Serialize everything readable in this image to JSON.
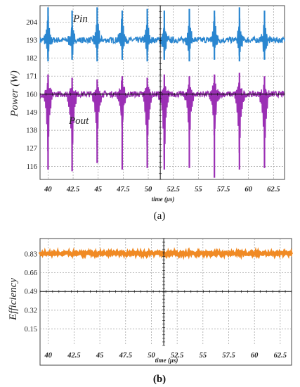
{
  "chart_data": [
    {
      "type": "line",
      "panel_label": "(a)",
      "ylabel": "Power (W)",
      "xlabel": "time (μs)",
      "xlim": [
        39.2,
        63.6
      ],
      "ylim": [
        108,
        214
      ],
      "x_ticks": [
        "40",
        "42.5",
        "45",
        "47.5",
        "50",
        "52.5",
        "55",
        "57.5",
        "60",
        "62.5"
      ],
      "x_tick_values": [
        40,
        42.5,
        45,
        47.5,
        50,
        52.5,
        55,
        57.5,
        60,
        62.5
      ],
      "y_ticks": [
        "204",
        "193",
        "182",
        "171",
        "160",
        "149",
        "138",
        "127",
        "116"
      ],
      "y_tick_values": [
        204,
        193,
        182,
        171,
        160,
        149,
        138,
        127,
        116
      ],
      "grid": true,
      "cursor_x": 51.2,
      "cursor_y": 160,
      "series": [
        {
          "name": "Pin",
          "color": "#2a86d0",
          "baseline": 193,
          "spikes": [
            {
              "t": 40.0,
              "max": 213,
              "min": 180
            },
            {
              "t": 42.4,
              "max": 211,
              "min": 181
            },
            {
              "t": 44.9,
              "max": 213,
              "min": 180
            },
            {
              "t": 47.4,
              "max": 211,
              "min": 181
            },
            {
              "t": 49.9,
              "max": 212,
              "min": 180
            },
            {
              "t": 51.6,
              "max": 211,
              "min": 181
            },
            {
              "t": 54.1,
              "max": 212,
              "min": 180
            },
            {
              "t": 56.6,
              "max": 211,
              "min": 181
            },
            {
              "t": 59.1,
              "max": 213,
              "min": 180
            },
            {
              "t": 61.6,
              "max": 211,
              "min": 181
            }
          ]
        },
        {
          "name": "Pout",
          "color": "#9b2fb4",
          "baseline": 160,
          "spikes": [
            {
              "t": 40.0,
              "max": 172,
              "min": 114
            },
            {
              "t": 42.4,
              "max": 170,
              "min": 113
            },
            {
              "t": 44.9,
              "max": 169,
              "min": 118
            },
            {
              "t": 47.4,
              "max": 171,
              "min": 114
            },
            {
              "t": 49.9,
              "max": 170,
              "min": 115
            },
            {
              "t": 51.6,
              "max": 172,
              "min": 114
            },
            {
              "t": 54.1,
              "max": 171,
              "min": 115
            },
            {
              "t": 56.6,
              "max": 172,
              "min": 109
            },
            {
              "t": 59.1,
              "max": 173,
              "min": 114
            },
            {
              "t": 61.6,
              "max": 171,
              "min": 115
            }
          ]
        }
      ]
    },
    {
      "type": "line",
      "panel_label": "(b)",
      "ylabel": "Efficiency",
      "xlabel": "time (μs)",
      "xlim": [
        39.2,
        63.6
      ],
      "ylim": [
        0.0,
        0.97
      ],
      "x_ticks": [
        "40",
        "42.5",
        "45",
        "47.5",
        "50",
        "52.5",
        "55",
        "57.5",
        "60",
        "62.5"
      ],
      "x_tick_values": [
        40,
        42.5,
        45,
        47.5,
        50,
        52.5,
        55,
        57.5,
        60,
        62.5
      ],
      "y_ticks": [
        "0.83",
        "0.66",
        "0.49",
        "0.32",
        "0.15"
      ],
      "y_tick_values": [
        0.83,
        0.66,
        0.49,
        0.32,
        0.15
      ],
      "grid": true,
      "cursor_x": 51.2,
      "cursor_y": 0.49,
      "series": [
        {
          "name": "",
          "color": "#f08a24",
          "baseline": 0.835,
          "noise": 0.012
        }
      ]
    }
  ],
  "annotations": {
    "pin_label": "Pin",
    "pout_label": "Pout"
  }
}
